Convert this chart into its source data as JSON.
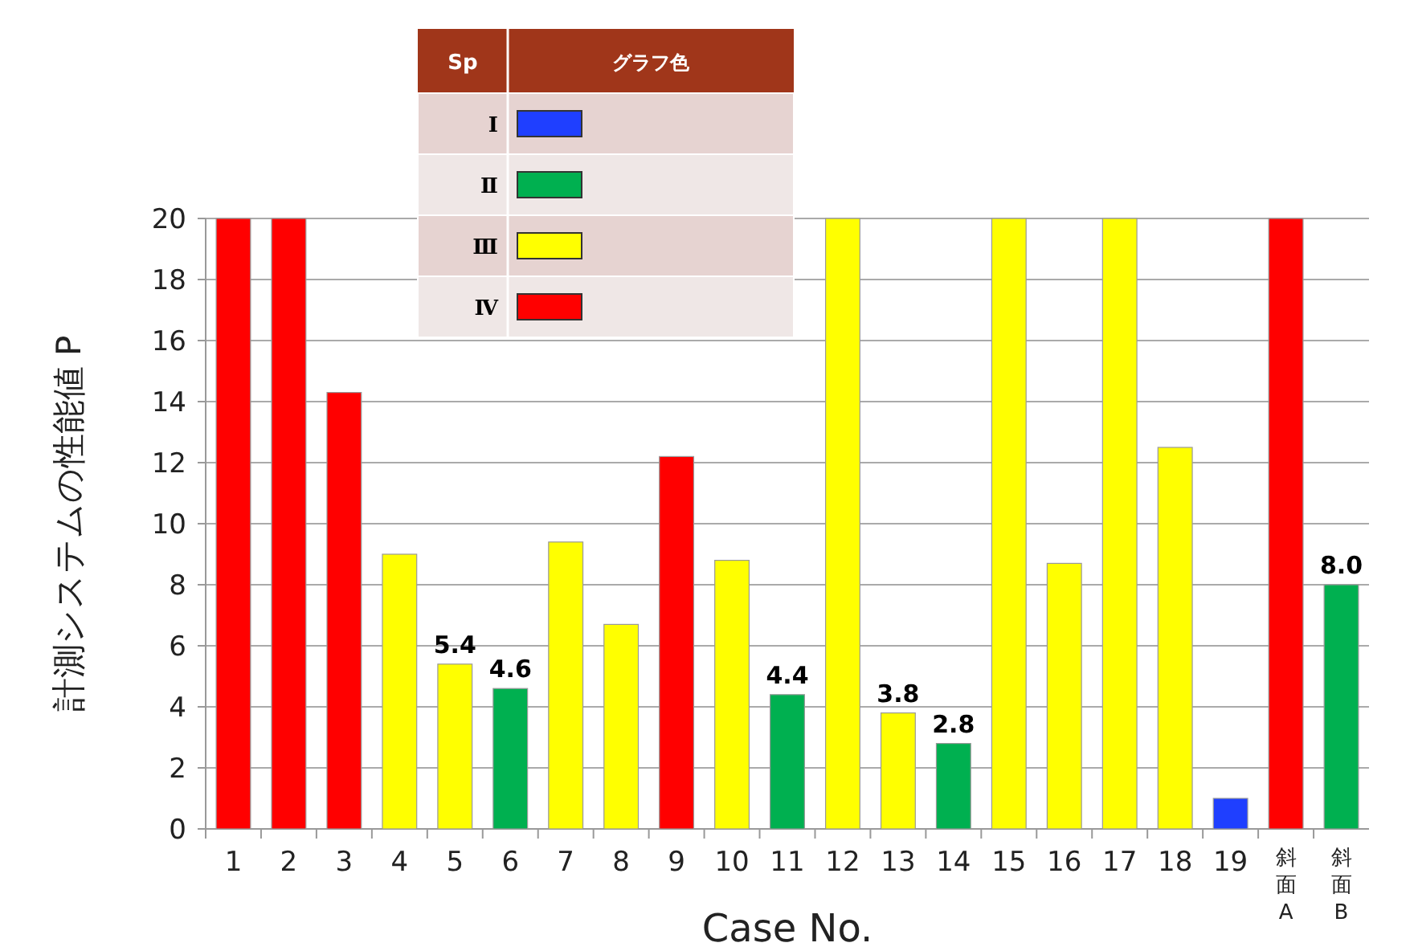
{
  "chart_data": {
    "type": "bar",
    "xlabel": "Case No.",
    "ylabel": "計測システムの性能値 P",
    "legend_title": "Sp",
    "annotations": [
      "グラフ色"
    ],
    "categories": [
      "1",
      "2",
      "3",
      "4",
      "5",
      "6",
      "7",
      "8",
      "9",
      "10",
      "11",
      "12",
      "13",
      "14",
      "15",
      "16",
      "17",
      "18",
      "19",
      "斜面A",
      "斜面B"
    ],
    "stacked": true,
    "ylim": [
      0,
      20
    ],
    "yticks": [
      0,
      2,
      4,
      6,
      8,
      10,
      12,
      14,
      16,
      18,
      20
    ],
    "grid": "y",
    "legend": "top left",
    "series": [
      {
        "name": "Ⅰ",
        "color": "#1f3fff",
        "values": [
          null,
          null,
          null,
          null,
          null,
          null,
          null,
          null,
          null,
          null,
          null,
          null,
          null,
          null,
          null,
          null,
          null,
          null,
          1.0,
          null,
          null
        ]
      },
      {
        "name": "Ⅱ",
        "color": "#00b050",
        "values": [
          null,
          null,
          null,
          null,
          null,
          4.6,
          null,
          null,
          null,
          null,
          4.4,
          null,
          null,
          2.8,
          null,
          null,
          null,
          null,
          null,
          null,
          8.0
        ],
        "value_labels": [
          null,
          null,
          null,
          null,
          null,
          "4.6",
          null,
          null,
          null,
          null,
          "4.4",
          null,
          null,
          "2.8",
          null,
          null,
          null,
          null,
          null,
          null,
          "8.0"
        ]
      },
      {
        "name": "Ⅲ",
        "color": "#ffff00",
        "values": [
          null,
          null,
          null,
          9.0,
          5.4,
          null,
          9.4,
          6.7,
          null,
          8.8,
          null,
          20,
          3.8,
          null,
          20,
          8.7,
          20,
          12.5,
          null,
          null,
          null
        ],
        "value_labels": [
          null,
          null,
          null,
          null,
          "5.4",
          null,
          null,
          null,
          null,
          null,
          null,
          null,
          "3.8",
          null,
          null,
          null,
          null,
          null,
          null,
          null,
          null
        ]
      },
      {
        "name": "Ⅳ",
        "color": "#ff0000",
        "values": [
          20,
          20,
          14.3,
          null,
          null,
          null,
          null,
          null,
          12.2,
          null,
          null,
          null,
          null,
          null,
          null,
          null,
          null,
          null,
          null,
          20,
          null
        ]
      }
    ]
  }
}
